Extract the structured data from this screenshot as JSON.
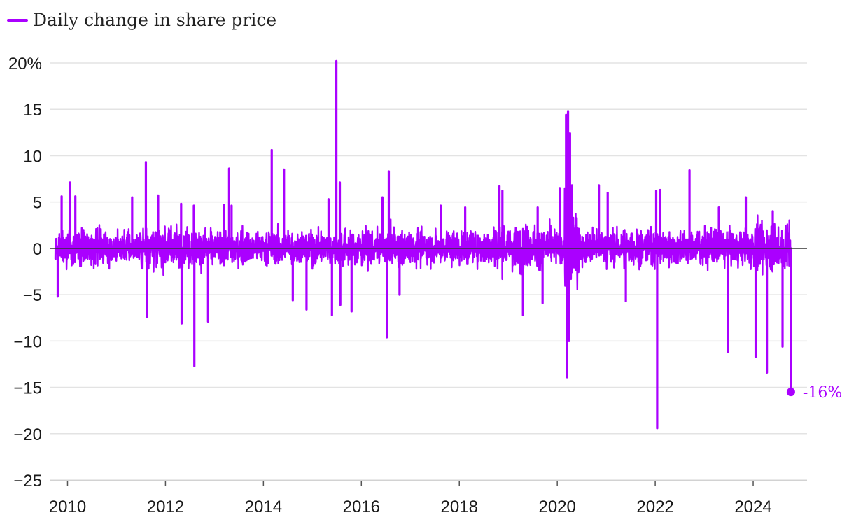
{
  "chart_data": {
    "type": "line",
    "title": "",
    "xlabel": "",
    "ylabel": "",
    "ylim": [
      -25,
      20
    ],
    "xlim": [
      2009.65,
      2025.1
    ],
    "y_ticks": [
      {
        "value": 20,
        "label": "20%"
      },
      {
        "value": 15,
        "label": "15"
      },
      {
        "value": 10,
        "label": "10"
      },
      {
        "value": 5,
        "label": "5"
      },
      {
        "value": 0,
        "label": "0"
      },
      {
        "value": -5,
        "label": "−5"
      },
      {
        "value": -10,
        "label": "−10"
      },
      {
        "value": -15,
        "label": "−15"
      },
      {
        "value": -20,
        "label": "−20"
      },
      {
        "value": -25,
        "label": "−25"
      }
    ],
    "x_ticks": [
      {
        "value": 2010,
        "label": "2010"
      },
      {
        "value": 2012,
        "label": "2012"
      },
      {
        "value": 2014,
        "label": "2014"
      },
      {
        "value": 2016,
        "label": "2016"
      },
      {
        "value": 2018,
        "label": "2018"
      },
      {
        "value": 2020,
        "label": "2020"
      },
      {
        "value": 2022,
        "label": "2022"
      },
      {
        "value": 2024,
        "label": "2024"
      }
    ],
    "gridlines": true,
    "legend": {
      "position": "top-left"
    },
    "series": [
      {
        "name": "Daily change in share price",
        "color": "#aa00ff",
        "end_label": "-16%",
        "end_point": {
          "x": 2024.77,
          "y": -15.5
        },
        "spikes": [
          {
            "x": 2009.8,
            "y": -5.2
          },
          {
            "x": 2009.88,
            "y": 5.6
          },
          {
            "x": 2010.05,
            "y": 7.1
          },
          {
            "x": 2010.16,
            "y": 5.6
          },
          {
            "x": 2011.32,
            "y": 5.5
          },
          {
            "x": 2011.6,
            "y": 9.3
          },
          {
            "x": 2011.62,
            "y": -7.4
          },
          {
            "x": 2011.85,
            "y": 5.7
          },
          {
            "x": 2012.32,
            "y": 4.8
          },
          {
            "x": 2012.33,
            "y": -8.1
          },
          {
            "x": 2012.58,
            "y": 4.6
          },
          {
            "x": 2012.59,
            "y": -12.7
          },
          {
            "x": 2012.87,
            "y": -7.9
          },
          {
            "x": 2013.2,
            "y": 4.7
          },
          {
            "x": 2013.3,
            "y": 8.6
          },
          {
            "x": 2013.35,
            "y": 4.6
          },
          {
            "x": 2014.17,
            "y": 10.6
          },
          {
            "x": 2014.42,
            "y": 8.5
          },
          {
            "x": 2014.6,
            "y": -5.6
          },
          {
            "x": 2014.88,
            "y": -6.6
          },
          {
            "x": 2015.33,
            "y": 5.3
          },
          {
            "x": 2015.4,
            "y": -7.2
          },
          {
            "x": 2015.49,
            "y": 20.2
          },
          {
            "x": 2015.56,
            "y": 7.1
          },
          {
            "x": 2015.57,
            "y": -6.1
          },
          {
            "x": 2015.8,
            "y": -6.8
          },
          {
            "x": 2016.43,
            "y": 5.5
          },
          {
            "x": 2016.52,
            "y": -9.6
          },
          {
            "x": 2016.56,
            "y": 8.3
          },
          {
            "x": 2016.78,
            "y": -5.0
          },
          {
            "x": 2017.62,
            "y": 4.6
          },
          {
            "x": 2018.12,
            "y": 4.4
          },
          {
            "x": 2018.82,
            "y": 6.7
          },
          {
            "x": 2018.88,
            "y": 6.2
          },
          {
            "x": 2019.3,
            "y": -7.2
          },
          {
            "x": 2019.6,
            "y": 4.4
          },
          {
            "x": 2019.7,
            "y": -5.9
          },
          {
            "x": 2020.05,
            "y": 6.5
          },
          {
            "x": 2020.18,
            "y": 14.4
          },
          {
            "x": 2020.2,
            "y": -13.9
          },
          {
            "x": 2020.22,
            "y": 14.8
          },
          {
            "x": 2020.24,
            "y": -10.0
          },
          {
            "x": 2020.26,
            "y": 12.4
          },
          {
            "x": 2020.3,
            "y": 6.8
          },
          {
            "x": 2020.85,
            "y": 6.8
          },
          {
            "x": 2021.03,
            "y": 6.0
          },
          {
            "x": 2021.4,
            "y": -5.7
          },
          {
            "x": 2022.02,
            "y": 6.2
          },
          {
            "x": 2022.04,
            "y": -19.4
          },
          {
            "x": 2022.1,
            "y": 6.3
          },
          {
            "x": 2022.7,
            "y": 8.4
          },
          {
            "x": 2023.3,
            "y": 4.4
          },
          {
            "x": 2023.48,
            "y": -11.2
          },
          {
            "x": 2023.85,
            "y": 5.5
          },
          {
            "x": 2024.05,
            "y": -11.7
          },
          {
            "x": 2024.28,
            "y": -13.4
          },
          {
            "x": 2024.4,
            "y": 4.0
          },
          {
            "x": 2024.6,
            "y": -10.6
          },
          {
            "x": 2024.77,
            "y": -15.5
          }
        ]
      }
    ]
  }
}
